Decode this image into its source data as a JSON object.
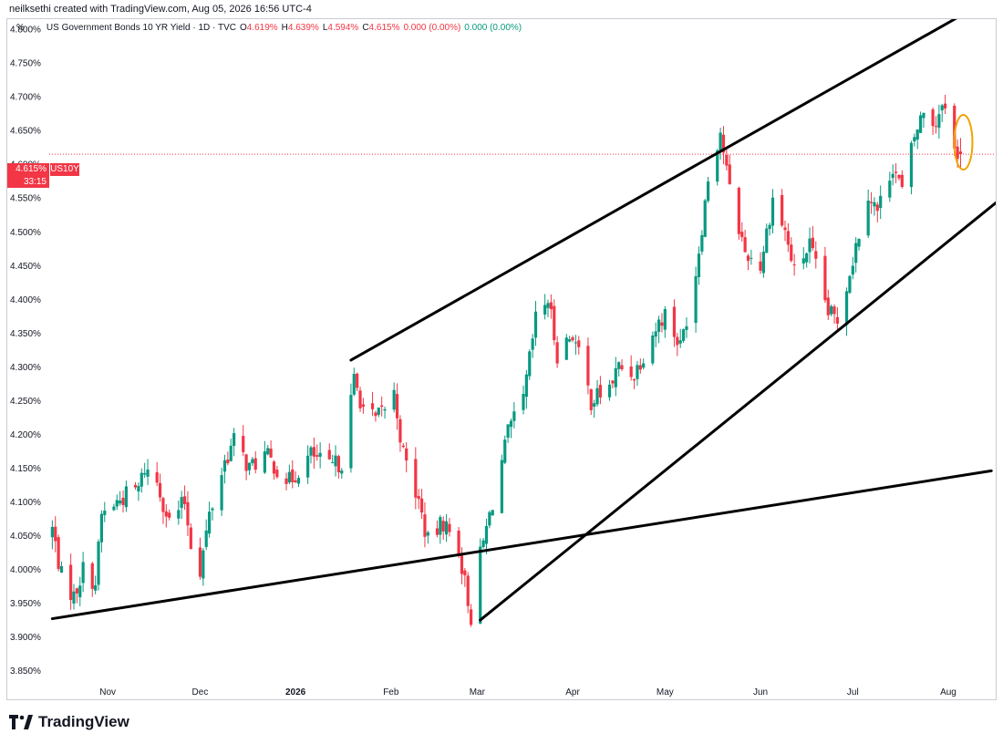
{
  "header": {
    "attribution": "neilksethi created with TradingView.com, Aug 05, 2026 16:56 UTC-4"
  },
  "legend": {
    "symbol": "US Government Bonds 10 YR Yield · 1D · TVC",
    "o_label": "O",
    "o_value": "4.619%",
    "h_label": "H",
    "h_value": "4.639%",
    "l_label": "L",
    "l_value": "4.594%",
    "c_label": "C",
    "c_value": "4.615%",
    "change": "0.000 (0.00%)",
    "change2": "0.000 (0.00%)"
  },
  "axis": {
    "unit": "%"
  },
  "badge": {
    "price": "4.615%",
    "countdown": "33:15",
    "symbol": "US10Y"
  },
  "logo": {
    "text": "TradingView"
  },
  "colors": {
    "up": "#089981",
    "down": "#f23645",
    "trendline": "#000000",
    "highlight": "#f0a400",
    "price_line": "#f23645"
  },
  "chart_data": {
    "type": "candlestick",
    "y_ticks": [
      "4.800%",
      "4.750%",
      "4.700%",
      "4.650%",
      "4.600%",
      "4.550%",
      "4.500%",
      "4.450%",
      "4.400%",
      "4.350%",
      "4.300%",
      "4.250%",
      "4.200%",
      "4.150%",
      "4.100%",
      "4.050%",
      "4.000%",
      "3.950%",
      "3.900%",
      "3.850%"
    ],
    "y_tick_values": [
      4.8,
      4.75,
      4.7,
      4.65,
      4.6,
      4.55,
      4.5,
      4.45,
      4.4,
      4.35,
      4.3,
      4.25,
      4.2,
      4.15,
      4.1,
      4.05,
      4.0,
      3.95,
      3.9,
      3.85
    ],
    "ylim": [
      3.84,
      4.815
    ],
    "x_labels": [
      {
        "label": "Nov",
        "date": "2025-11-01"
      },
      {
        "label": "Dec",
        "date": "2025-12-01"
      },
      {
        "label": "2026",
        "date": "2026-01-01"
      },
      {
        "label": "Feb",
        "date": "2026-02-01"
      },
      {
        "label": "Mar",
        "date": "2026-03-01"
      },
      {
        "label": "Apr",
        "date": "2026-04-01"
      },
      {
        "label": "May",
        "date": "2026-05-01"
      },
      {
        "label": "Jun",
        "date": "2026-06-01"
      },
      {
        "label": "Jul",
        "date": "2026-07-01"
      },
      {
        "label": "Aug",
        "date": "2026-08-01"
      }
    ],
    "xlim": [
      "2025-10-13",
      "2026-08-17"
    ],
    "last_price": 4.615,
    "anchors": [
      [
        "2025-10-14",
        4.06
      ],
      [
        "2025-10-17",
        3.99
      ],
      [
        "2025-10-21",
        3.96
      ],
      [
        "2025-10-24",
        4.0
      ],
      [
        "2025-10-28",
        3.98
      ],
      [
        "2025-10-30",
        4.08
      ],
      [
        "2025-11-04",
        4.1
      ],
      [
        "2025-11-07",
        4.11
      ],
      [
        "2025-11-11",
        4.12
      ],
      [
        "2025-11-13",
        4.15
      ],
      [
        "2025-11-17",
        4.13
      ],
      [
        "2025-11-21",
        4.07
      ],
      [
        "2025-11-26",
        4.1
      ],
      [
        "2025-11-28",
        4.04
      ],
      [
        "2025-12-01",
        4.0
      ],
      [
        "2025-12-04",
        4.08
      ],
      [
        "2025-12-09",
        4.16
      ],
      [
        "2025-12-12",
        4.19
      ],
      [
        "2025-12-17",
        4.15
      ],
      [
        "2025-12-22",
        4.17
      ],
      [
        "2025-12-30",
        4.13
      ],
      [
        "2026-01-06",
        4.17
      ],
      [
        "2026-01-12",
        4.15
      ],
      [
        "2026-01-16",
        4.16
      ],
      [
        "2026-01-20",
        4.28
      ],
      [
        "2026-01-23",
        4.24
      ],
      [
        "2026-01-27",
        4.22
      ],
      [
        "2026-02-02",
        4.26
      ],
      [
        "2026-02-05",
        4.17
      ],
      [
        "2026-02-10",
        4.1
      ],
      [
        "2026-02-13",
        4.04
      ],
      [
        "2026-02-18",
        4.07
      ],
      [
        "2026-02-23",
        4.03
      ],
      [
        "2026-02-27",
        3.93
      ],
      [
        "2026-03-02",
        4.02
      ],
      [
        "2026-03-06",
        4.1
      ],
      [
        "2026-03-11",
        4.2
      ],
      [
        "2026-03-16",
        4.25
      ],
      [
        "2026-03-20",
        4.37
      ],
      [
        "2026-03-24",
        4.4
      ],
      [
        "2026-03-27",
        4.32
      ],
      [
        "2026-04-01",
        4.35
      ],
      [
        "2026-04-07",
        4.25
      ],
      [
        "2026-04-13",
        4.27
      ],
      [
        "2026-04-16",
        4.3
      ],
      [
        "2026-04-21",
        4.29
      ],
      [
        "2026-04-27",
        4.35
      ],
      [
        "2026-05-01",
        4.38
      ],
      [
        "2026-05-06",
        4.33
      ],
      [
        "2026-05-11",
        4.44
      ],
      [
        "2026-05-15",
        4.58
      ],
      [
        "2026-05-19",
        4.65
      ],
      [
        "2026-05-22",
        4.56
      ],
      [
        "2026-05-27",
        4.47
      ],
      [
        "2026-06-01",
        4.45
      ],
      [
        "2026-06-05",
        4.55
      ],
      [
        "2026-06-09",
        4.5
      ],
      [
        "2026-06-12",
        4.44
      ],
      [
        "2026-06-17",
        4.48
      ],
      [
        "2026-06-23",
        4.38
      ],
      [
        "2026-06-26",
        4.37
      ],
      [
        "2026-07-01",
        4.46
      ],
      [
        "2026-07-06",
        4.56
      ],
      [
        "2026-07-09",
        4.53
      ],
      [
        "2026-07-14",
        4.6
      ],
      [
        "2026-07-17",
        4.56
      ],
      [
        "2026-07-21",
        4.64
      ],
      [
        "2026-07-24",
        4.68
      ],
      [
        "2026-07-28",
        4.66
      ],
      [
        "2026-07-30",
        4.7
      ],
      [
        "2026-08-03",
        4.62
      ],
      [
        "2026-08-05",
        4.615
      ]
    ],
    "trendlines": [
      {
        "name": "upper-channel",
        "x1": "2026-01-19",
        "y1": 4.31,
        "x2": "2026-08-05",
        "y2": 4.82
      },
      {
        "name": "lower-channel",
        "x1": "2026-03-02",
        "y1": 3.925,
        "x2": "2026-08-17",
        "y2": 4.545
      },
      {
        "name": "long-support",
        "x1": "2025-10-14",
        "y1": 3.927,
        "x2": "2026-08-15",
        "y2": 4.146
      }
    ],
    "highlight": {
      "date": "2026-08-05",
      "value": 4.63
    }
  }
}
